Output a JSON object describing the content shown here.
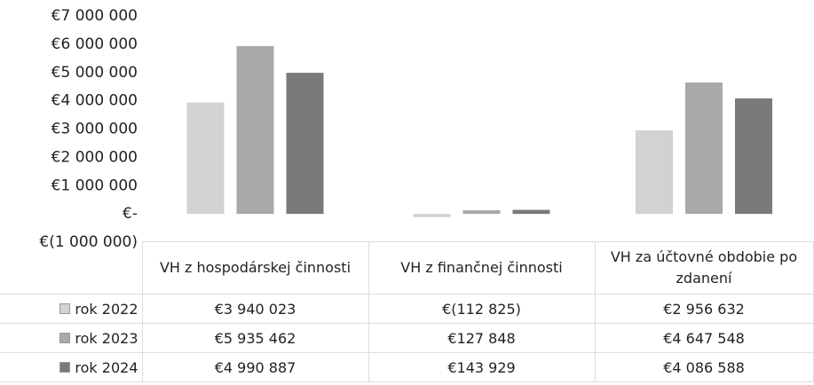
{
  "chart_data": {
    "type": "bar",
    "categories": [
      "VH z hospodárskej činnosti",
      "VH z finančnej činnosti",
      "VH za účtovné obdobie po zdanení"
    ],
    "series": [
      {
        "name": "rok 2022",
        "color": "#d2d2d2",
        "values": [
          3940023,
          -112825,
          2956632
        ],
        "value_labels": [
          "€3 940 023",
          "€(112 825)",
          "€2 956 632"
        ]
      },
      {
        "name": "rok 2023",
        "color": "#a9a9a9",
        "values": [
          5935462,
          127848,
          4647548
        ],
        "value_labels": [
          "€5 935 462",
          "€127 848",
          "€4 647 548"
        ]
      },
      {
        "name": "rok 2024",
        "color": "#7a7a7a",
        "values": [
          4990887,
          143929,
          4086588
        ],
        "value_labels": [
          "€4 990 887",
          "€143 929",
          "€4 086 588"
        ]
      }
    ],
    "ylim": [
      -1000000,
      7000000
    ],
    "yticks": [
      {
        "value": -1000000,
        "label": "€(1 000 000)"
      },
      {
        "value": 0,
        "label": "€-"
      },
      {
        "value": 1000000,
        "label": "€1 000 000"
      },
      {
        "value": 2000000,
        "label": "€2 000 000"
      },
      {
        "value": 3000000,
        "label": "€3 000 000"
      },
      {
        "value": 4000000,
        "label": "€4 000 000"
      },
      {
        "value": 5000000,
        "label": "€5 000 000"
      },
      {
        "value": 6000000,
        "label": "€6 000 000"
      },
      {
        "value": 7000000,
        "label": "€7 000 000"
      }
    ],
    "grid": false
  }
}
